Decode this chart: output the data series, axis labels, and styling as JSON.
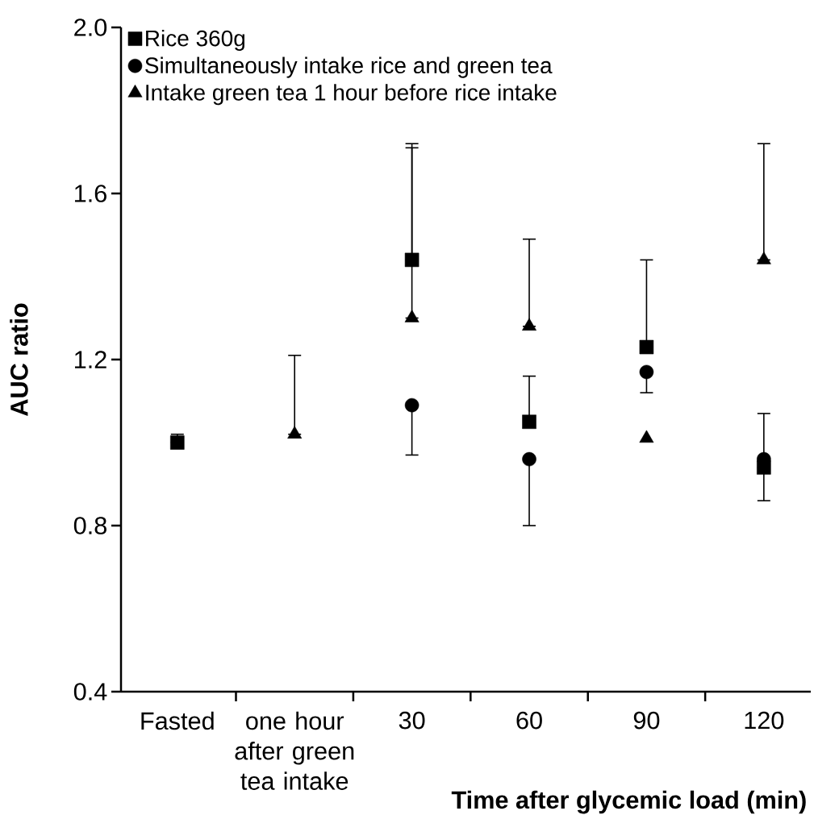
{
  "chart_data": {
    "type": "scatter",
    "xlabel": "Time after glycemic load (min)",
    "ylabel": "AUC ratio",
    "categories": [
      "Fasted",
      "one hour after green tea intake",
      "30",
      "60",
      "90",
      "120"
    ],
    "ylim": [
      0.4,
      2.0
    ],
    "yticks": [
      0.4,
      0.8,
      1.2,
      1.6,
      {
        "value": 2.0,
        "label": "2.0"
      }
    ],
    "legend": "top left",
    "grid": false,
    "series": [
      {
        "name": "Rice 360g",
        "color": "#000000",
        "marker": "square",
        "values": [
          1.0,
          null,
          1.44,
          1.05,
          1.23,
          0.94
        ],
        "errors": [
          [
            1.0,
            1.02
          ],
          null,
          [
            1.44,
            1.71
          ],
          [
            1.05,
            1.16
          ],
          [
            1.23,
            1.44
          ],
          [
            0.94,
            1.07
          ]
        ]
      },
      {
        "name": "Simultaneously intake rice and green tea",
        "color": "#000000",
        "marker": "circle",
        "values": [
          null,
          null,
          1.09,
          0.96,
          1.17,
          0.96
        ],
        "errors": [
          null,
          null,
          [
            0.97,
            1.09
          ],
          [
            0.8,
            0.96
          ],
          [
            1.12,
            1.17
          ],
          [
            0.86,
            0.96
          ]
        ]
      },
      {
        "name": "Intake green tea 1 hour before rice intake",
        "color": "#000000",
        "marker": "triangle",
        "values": [
          null,
          1.02,
          1.3,
          1.28,
          1.01,
          1.44
        ],
        "errors": [
          null,
          [
            1.02,
            1.21
          ],
          [
            1.3,
            1.72
          ],
          [
            1.28,
            1.49
          ],
          null,
          [
            1.44,
            1.72
          ]
        ]
      }
    ]
  }
}
